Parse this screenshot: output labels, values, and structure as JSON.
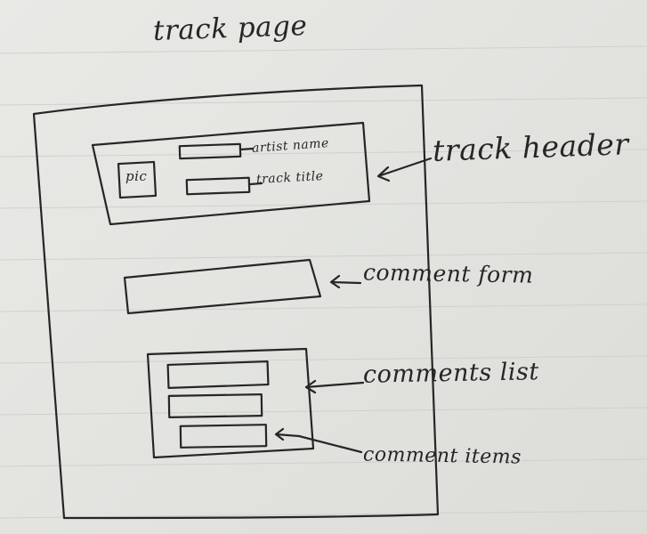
{
  "page_title": "track page",
  "labels": {
    "track_header": "track header",
    "comment_form": "comment form",
    "comments_list": "comments list",
    "comment_items": "comment items"
  },
  "header_box": {
    "pic": "pic",
    "artist_name": "artist name",
    "track_title": "track title"
  }
}
